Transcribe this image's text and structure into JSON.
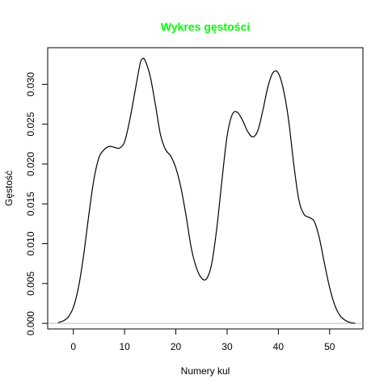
{
  "chart_data": {
    "type": "line",
    "title": "Wykres gęstości",
    "title_color": "#00ff00",
    "xlabel": "Numery kul",
    "ylabel": "Gęstość",
    "xlim": [
      -5,
      56.5
    ],
    "ylim": [
      -0.0007,
      0.0346
    ],
    "x_ticks": [
      0,
      10,
      20,
      30,
      40,
      50
    ],
    "y_ticks": [
      0.0,
      0.005,
      0.01,
      0.015,
      0.02,
      0.025,
      0.03
    ],
    "x_tick_labels": [
      "0",
      "10",
      "20",
      "30",
      "40",
      "50"
    ],
    "y_tick_labels": [
      "0.000",
      "0.005",
      "0.010",
      "0.015",
      "0.020",
      "0.025",
      "0.030"
    ],
    "grid": false,
    "legend": "none",
    "baseline": 0,
    "baseline_color": "#bebebe",
    "line_color": "#000000",
    "series": [
      {
        "x": [
          -3,
          -2,
          -1,
          0,
          1,
          2,
          3,
          4,
          5,
          6,
          7,
          8,
          9,
          10,
          11,
          12,
          13,
          13.5,
          14,
          15,
          16,
          17,
          18,
          19,
          20,
          21,
          22,
          23,
          24,
          25,
          26,
          27,
          28,
          29,
          30,
          31,
          32,
          33,
          34,
          35,
          36,
          37,
          38,
          39,
          40,
          41,
          42,
          43,
          44,
          45,
          46,
          47,
          48,
          49,
          50,
          51,
          52,
          53,
          54,
          55
        ],
        "y": [
          0.0001,
          0.0003,
          0.0008,
          0.002,
          0.0045,
          0.0085,
          0.0135,
          0.018,
          0.0208,
          0.0218,
          0.0222,
          0.0221,
          0.022,
          0.0228,
          0.0255,
          0.029,
          0.0325,
          0.0332,
          0.033,
          0.031,
          0.0275,
          0.0237,
          0.0218,
          0.021,
          0.0195,
          0.017,
          0.0135,
          0.0095,
          0.007,
          0.0057,
          0.0056,
          0.0075,
          0.012,
          0.018,
          0.0235,
          0.0262,
          0.0265,
          0.0255,
          0.0241,
          0.0234,
          0.0242,
          0.0268,
          0.0298,
          0.0315,
          0.0314,
          0.0293,
          0.0255,
          0.02,
          0.0155,
          0.0137,
          0.0133,
          0.0128,
          0.0107,
          0.0075,
          0.0045,
          0.0023,
          0.001,
          0.0004,
          0.0001,
          0.0
        ]
      }
    ]
  }
}
